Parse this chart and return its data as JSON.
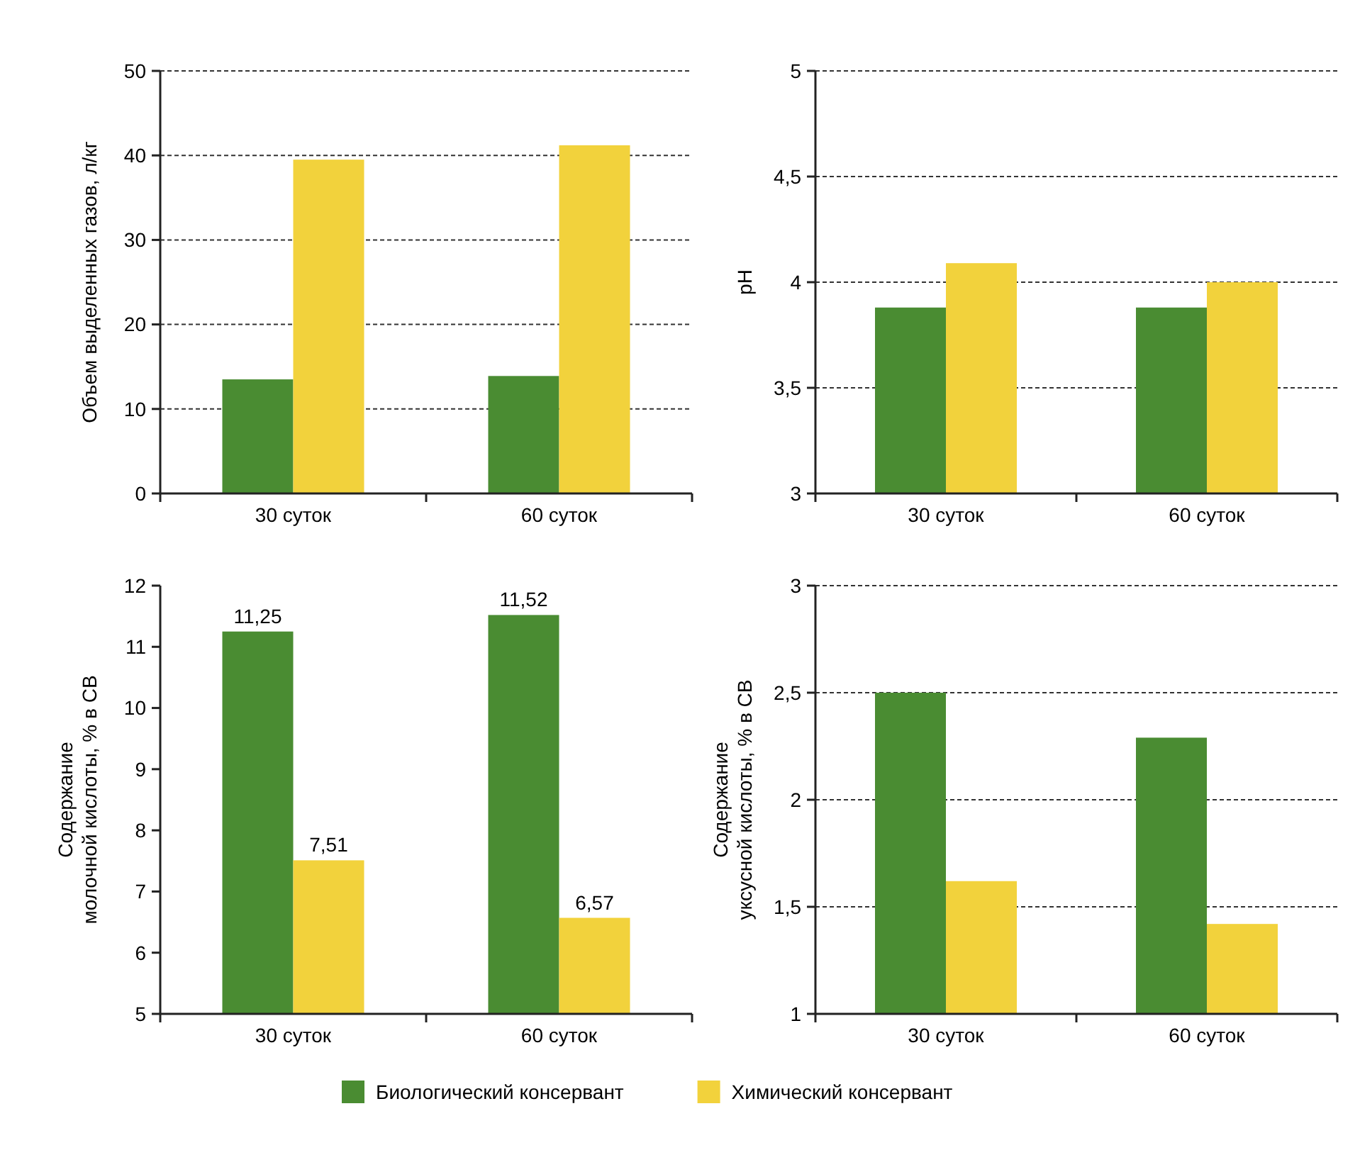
{
  "chart_data": [
    {
      "type": "bar",
      "ylabel": "Объем выделенных газов, л/кг",
      "categories": [
        "30 суток",
        "60 суток"
      ],
      "ylim": [
        0,
        50
      ],
      "yticks": [
        0,
        10,
        20,
        30,
        40,
        50
      ],
      "grid": "y",
      "series": [
        {
          "color": "#4a8c32",
          "values": [
            13.5,
            13.9
          ]
        },
        {
          "color": "#f2d23c",
          "values": [
            39.5,
            41.2
          ]
        }
      ]
    },
    {
      "type": "bar",
      "ylabel": "pH",
      "categories": [
        "30 суток",
        "60 суток"
      ],
      "ylim": [
        3,
        5
      ],
      "yticks": [
        3,
        {
          "value": 3.5,
          "label": "3,5"
        },
        4,
        {
          "value": 4.5,
          "label": "4,5"
        },
        5
      ],
      "grid": "y",
      "series": [
        {
          "color": "#4a8c32",
          "values": [
            3.88,
            3.88
          ]
        },
        {
          "color": "#f2d23c",
          "values": [
            4.09,
            4.0
          ]
        }
      ]
    },
    {
      "type": "bar",
      "ylabel": "Содержание\nмолочной кислоты, % в СВ",
      "categories": [
        "30 суток",
        "60 суток"
      ],
      "ylim": [
        5,
        12
      ],
      "yticks": [
        5,
        6,
        7,
        8,
        9,
        10,
        11,
        12
      ],
      "grid": false,
      "series": [
        {
          "color": "#4a8c32",
          "values": [
            11.25,
            11.52
          ],
          "value_labels": [
            "11,25",
            "11,52"
          ]
        },
        {
          "color": "#f2d23c",
          "values": [
            7.51,
            6.57
          ],
          "value_labels": [
            "7,51",
            "6,57"
          ]
        }
      ]
    },
    {
      "type": "bar",
      "ylabel": "Содержание\nуксусной кислоты, % в СВ",
      "categories": [
        "30 суток",
        "60 суток"
      ],
      "ylim": [
        1,
        3
      ],
      "yticks": [
        1,
        {
          "value": 1.5,
          "label": "1,5"
        },
        2,
        {
          "value": 2.5,
          "label": "2,5"
        },
        3
      ],
      "grid": "y",
      "legend": "bottom",
      "series": [
        {
          "name": "Биологический консервант",
          "color": "#4a8c32",
          "values": [
            2.5,
            2.29
          ]
        },
        {
          "name": "Химический консервант",
          "color": "#f2d23c",
          "values": [
            1.62,
            1.42
          ]
        }
      ]
    }
  ]
}
